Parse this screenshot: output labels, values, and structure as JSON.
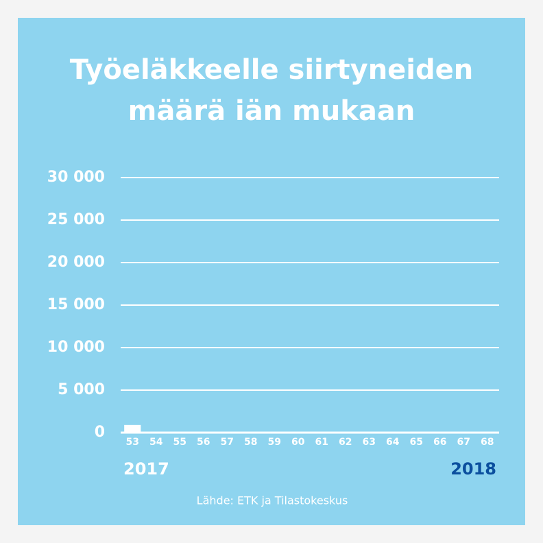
{
  "chart_data": {
    "type": "bar",
    "title": "Työeläkkeelle siirtyneiden määrä iän mukaan",
    "categories": [
      "53",
      "54",
      "55",
      "56",
      "57",
      "58",
      "59",
      "60",
      "61",
      "62",
      "63",
      "64",
      "65",
      "66",
      "67",
      "68"
    ],
    "values": [
      900,
      0,
      0,
      0,
      0,
      0,
      0,
      0,
      0,
      0,
      0,
      0,
      0,
      0,
      0,
      0
    ],
    "color": "#ffffff",
    "ylim": [
      0,
      30000
    ],
    "yticks": [
      0,
      {
        "value": 5000,
        "label": "5 000"
      },
      {
        "value": 10000,
        "label": "10 000"
      },
      {
        "value": 15000,
        "label": "15 000"
      },
      {
        "value": 20000,
        "label": "20 000"
      },
      {
        "value": 25000,
        "label": "25 000"
      },
      {
        "value": 30000,
        "label": "30 000"
      }
    ],
    "grid": true,
    "years": [
      {
        "label": "2017",
        "color": "#ffffff"
      },
      {
        "label": "2018",
        "color": "#0b4f9e"
      }
    ],
    "source": "Lähde: ETK ja Tilastokeskus"
  }
}
